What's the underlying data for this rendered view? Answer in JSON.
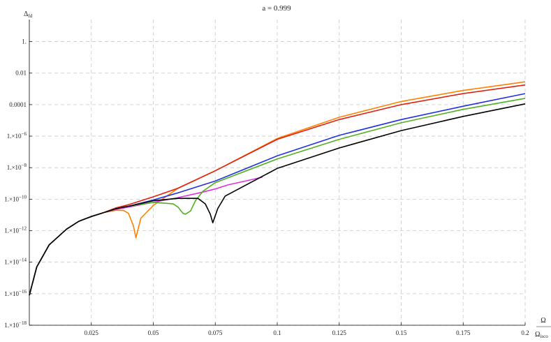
{
  "chart_data": {
    "type": "line",
    "title": "a = 0.999",
    "ylabel": "Δ",
    "ylabel_sub": "fd",
    "xlabel_num": "Ω",
    "xlabel_den": "Ω",
    "xlabel_den_sub": "isco",
    "log_y": true,
    "xlim": [
      0.0,
      0.2
    ],
    "ylim": [
      -18,
      1
    ],
    "grid": true,
    "x_ticks": [
      {
        "value": 0.025,
        "label": "0.025"
      },
      {
        "value": 0.05,
        "label": "0.05"
      },
      {
        "value": 0.075,
        "label": "0.075"
      },
      {
        "value": 0.1,
        "label": "0.1"
      },
      {
        "value": 0.125,
        "label": "0.125"
      },
      {
        "value": 0.15,
        "label": "0.15"
      },
      {
        "value": 0.175,
        "label": "0.175"
      },
      {
        "value": 0.2,
        "label": "0.2"
      }
    ],
    "y_ticks": [
      {
        "exp": 0,
        "label": "1."
      },
      {
        "exp": -2,
        "label": "0.01"
      },
      {
        "exp": -4,
        "label": "0.0001"
      },
      {
        "exp": -6,
        "label": "1.×10",
        "sup": "−6"
      },
      {
        "exp": -8,
        "label": "1.×10",
        "sup": "−8"
      },
      {
        "exp": -10,
        "label": "1.×10",
        "sup": "−10"
      },
      {
        "exp": -12,
        "label": "1.×10",
        "sup": "−12"
      },
      {
        "exp": -14,
        "label": "1.×10",
        "sup": "−14"
      },
      {
        "exp": -16,
        "label": "1.×10",
        "sup": "−16"
      },
      {
        "exp": -18,
        "label": "1.×10",
        "sup": "−18"
      }
    ],
    "series": [
      {
        "color": "#ff8000",
        "x": [
          0.0,
          0.003,
          0.008,
          0.015,
          0.02,
          0.025,
          0.03,
          0.035,
          0.038,
          0.04,
          0.042,
          0.043,
          0.045,
          0.05,
          0.06,
          0.075,
          0.1,
          0.125,
          0.15,
          0.175,
          0.2
        ],
        "y": [
          -16.1,
          -14.3,
          -12.9,
          -11.9,
          -11.4,
          -11.1,
          -10.85,
          -10.7,
          -10.72,
          -10.9,
          -11.7,
          -12.45,
          -11.2,
          -10.4,
          -9.3,
          -8.2,
          -6.15,
          -4.8,
          -3.8,
          -3.1,
          -2.55
        ]
      },
      {
        "color": "#e02010",
        "x": [
          0.0,
          0.003,
          0.008,
          0.015,
          0.02,
          0.025,
          0.03,
          0.035,
          0.04,
          0.05,
          0.06,
          0.075,
          0.1,
          0.125,
          0.15,
          0.175,
          0.2
        ],
        "y": [
          -16.1,
          -14.3,
          -12.9,
          -11.9,
          -11.4,
          -11.1,
          -10.85,
          -10.55,
          -10.35,
          -9.85,
          -9.3,
          -8.2,
          -6.2,
          -4.95,
          -4.0,
          -3.3,
          -2.75
        ]
      },
      {
        "color": "#2030e0",
        "x": [
          0.0,
          0.003,
          0.008,
          0.015,
          0.02,
          0.025,
          0.03,
          0.035,
          0.04,
          0.05,
          0.06,
          0.075,
          0.1,
          0.125,
          0.15,
          0.175,
          0.2
        ],
        "y": [
          -16.1,
          -14.3,
          -12.9,
          -11.9,
          -11.4,
          -11.1,
          -10.85,
          -10.6,
          -10.45,
          -10.05,
          -9.6,
          -8.85,
          -7.25,
          -5.95,
          -4.95,
          -4.1,
          -3.3
        ]
      },
      {
        "color": "#e030e0",
        "x": [
          0.0,
          0.003,
          0.008,
          0.015,
          0.02,
          0.025,
          0.03,
          0.035,
          0.04,
          0.05,
          0.06,
          0.07,
          0.075,
          0.08,
          0.09,
          0.094
        ],
        "y": [
          -16.1,
          -14.3,
          -12.9,
          -11.9,
          -11.4,
          -11.1,
          -10.85,
          -10.65,
          -10.5,
          -10.2,
          -9.9,
          -9.55,
          -9.35,
          -9.1,
          -8.75,
          -8.6
        ]
      },
      {
        "color": "#50b020",
        "x": [
          0.0,
          0.003,
          0.008,
          0.015,
          0.02,
          0.025,
          0.03,
          0.035,
          0.04,
          0.05,
          0.058,
          0.06,
          0.062,
          0.063,
          0.065,
          0.067,
          0.07,
          0.075,
          0.1,
          0.125,
          0.15,
          0.175,
          0.2
        ],
        "y": [
          -16.1,
          -14.3,
          -12.9,
          -11.9,
          -11.4,
          -11.1,
          -10.85,
          -10.6,
          -10.45,
          -10.2,
          -10.3,
          -10.5,
          -10.9,
          -10.95,
          -10.75,
          -10.1,
          -9.5,
          -8.95,
          -7.45,
          -6.2,
          -5.15,
          -4.3,
          -3.6
        ]
      },
      {
        "color": "#000000",
        "x": [
          0.0,
          0.003,
          0.008,
          0.015,
          0.02,
          0.025,
          0.03,
          0.035,
          0.04,
          0.05,
          0.06,
          0.068,
          0.071,
          0.073,
          0.074,
          0.076,
          0.079,
          0.085,
          0.1,
          0.125,
          0.15,
          0.175,
          0.2
        ],
        "y": [
          -16.1,
          -14.3,
          -12.9,
          -11.9,
          -11.4,
          -11.1,
          -10.85,
          -10.6,
          -10.45,
          -10.1,
          -9.95,
          -9.95,
          -10.3,
          -10.95,
          -11.5,
          -10.6,
          -9.8,
          -9.3,
          -8.05,
          -6.75,
          -5.65,
          -4.75,
          -3.95
        ]
      }
    ]
  }
}
